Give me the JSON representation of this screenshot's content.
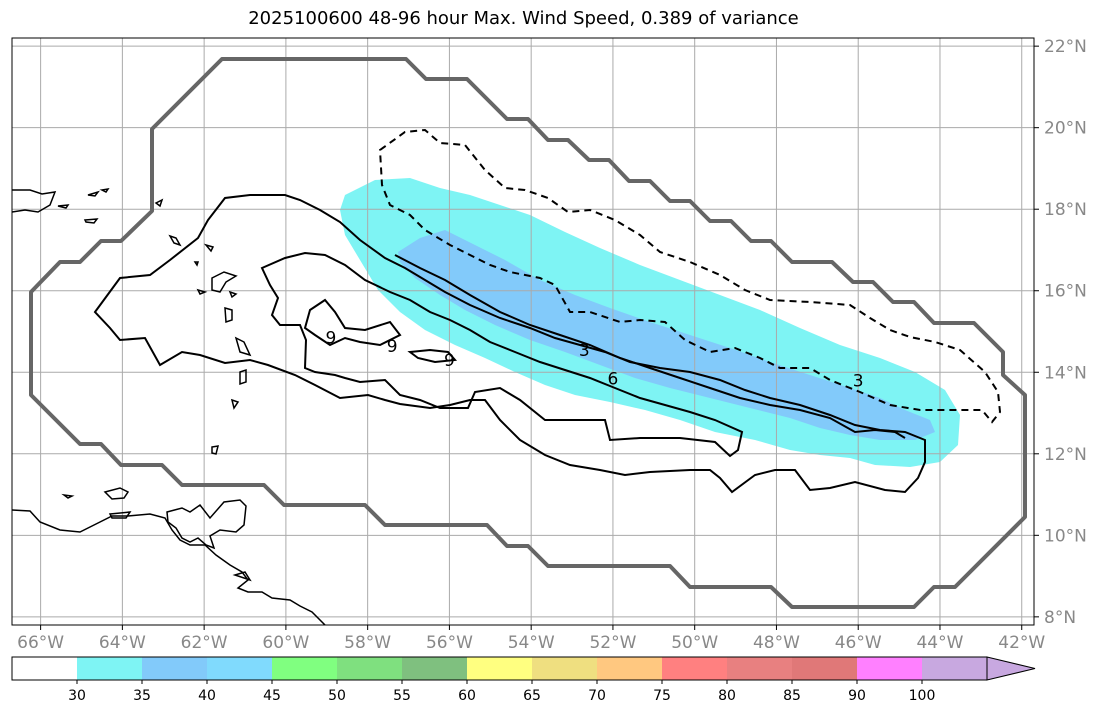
{
  "title": "2025100600 48-96 hour Max. Wind Speed, 0.389 of variance",
  "map": {
    "lon_range": [
      -66.7,
      -41.7
    ],
    "lat_range": [
      7.8,
      22.2
    ],
    "lon_ticks": [
      -66,
      -64,
      -62,
      -60,
      -58,
      -56,
      -54,
      -52,
      -50,
      -48,
      -46,
      -44,
      -42
    ],
    "lat_ticks": [
      8,
      10,
      12,
      14,
      16,
      18,
      20,
      22
    ],
    "lon_tick_labels": [
      "66°W",
      "64°W",
      "62°W",
      "60°W",
      "58°W",
      "56°W",
      "54°W",
      "52°W",
      "50°W",
      "48°W",
      "46°W",
      "44°W",
      "42°W"
    ],
    "lat_tick_labels": [
      "8°N",
      "10°N",
      "12°N",
      "14°N",
      "16°N",
      "18°N",
      "20°N",
      "22°N"
    ],
    "grid": true,
    "contour_labels": [
      {
        "text": "9",
        "lon": -58.9,
        "lat": 14.85
      },
      {
        "text": "9",
        "lon": -57.4,
        "lat": 14.65
      },
      {
        "text": "9",
        "lon": -56.0,
        "lat": 14.3
      },
      {
        "text": "3",
        "lon": -52.7,
        "lat": 14.55
      },
      {
        "text": "6",
        "lon": -52.0,
        "lat": 13.85
      },
      {
        "text": "3",
        "lon": -46.0,
        "lat": 13.8
      }
    ],
    "colors": {
      "shade_30_35": "#7ef4f4",
      "shade_35_40": "#82cafa",
      "envelope": "#666666"
    }
  },
  "colorbar": {
    "ticks": [
      "30",
      "35",
      "40",
      "45",
      "50",
      "55",
      "60",
      "65",
      "70",
      "75",
      "80",
      "85",
      "90",
      "100"
    ],
    "colors": [
      "#ffffff",
      "#7ef4f4",
      "#82cafa",
      "#80dafd",
      "#80ff80",
      "#7fe07f",
      "#7fc07f",
      "#ffff80",
      "#efdf80",
      "#ffc880",
      "#ff8080",
      "#e88080",
      "#e07878",
      "#ff80ff",
      "#c8a8e0"
    ]
  }
}
